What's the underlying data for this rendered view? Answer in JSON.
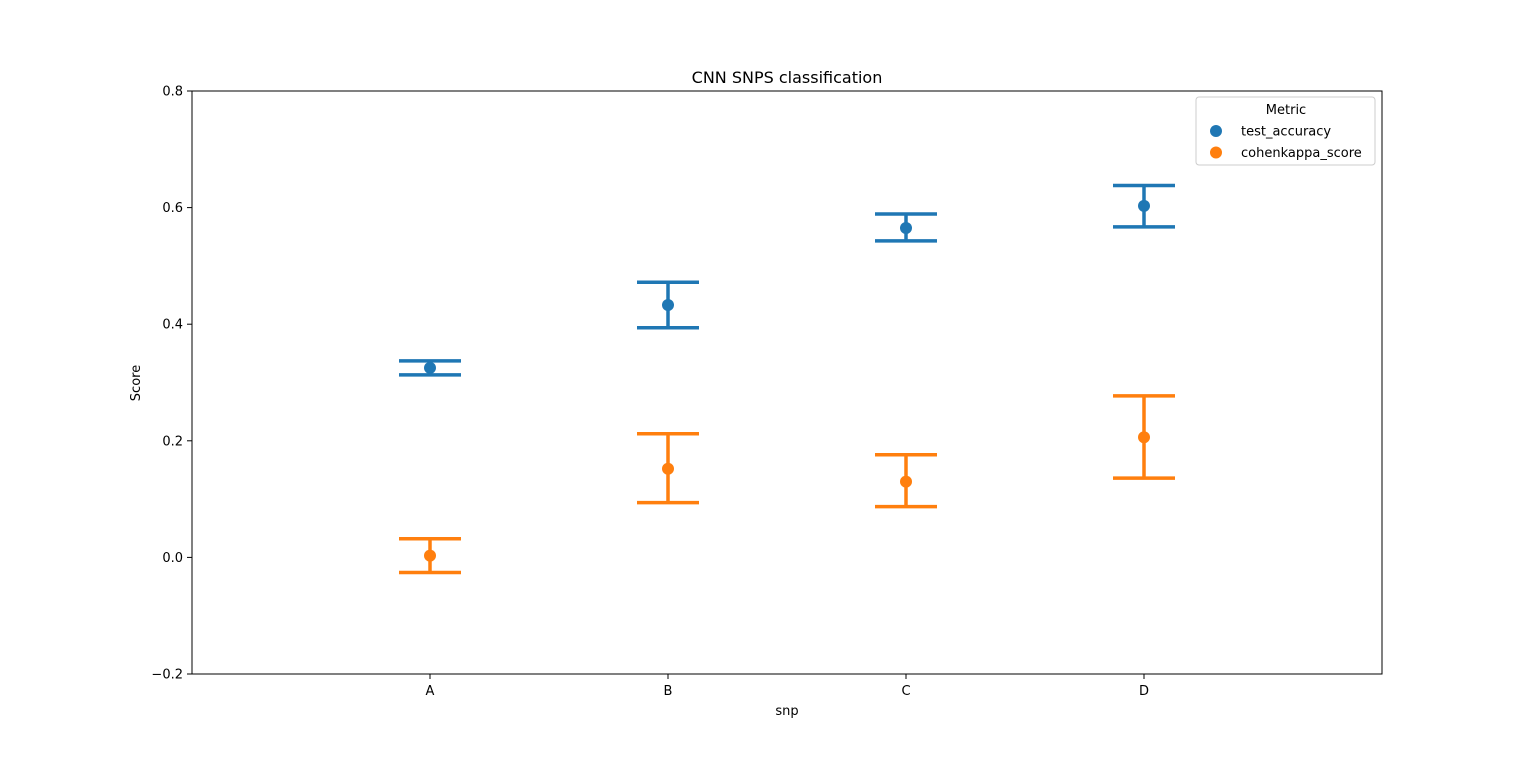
{
  "chart_data": {
    "type": "pointplot-errorbar",
    "title": "CNN SNPS classification",
    "xlabel": "snp",
    "ylabel": "Score",
    "categories": [
      "A",
      "B",
      "C",
      "D"
    ],
    "ylim": [
      -0.2,
      0.8
    ],
    "yticks": [
      -0.2,
      0.0,
      0.2,
      0.4,
      0.6,
      0.8
    ],
    "ytick_labels": [
      "−0.2",
      "0.0",
      "0.2",
      "0.4",
      "0.6",
      "0.8"
    ],
    "legend": {
      "title": "Metric",
      "placement": "top-right"
    },
    "series": [
      {
        "name": "test_accuracy",
        "color": "#1f77b4",
        "values": [
          0.325,
          0.433,
          0.565,
          0.603
        ],
        "lower": [
          0.313,
          0.394,
          0.543,
          0.567
        ],
        "upper": [
          0.337,
          0.472,
          0.589,
          0.638
        ]
      },
      {
        "name": "cohenkappa_score",
        "color": "#ff7f0e",
        "values": [
          0.003,
          0.152,
          0.13,
          0.206
        ],
        "lower": [
          -0.026,
          0.094,
          0.087,
          0.136
        ],
        "upper": [
          0.032,
          0.212,
          0.176,
          0.277
        ]
      }
    ]
  }
}
